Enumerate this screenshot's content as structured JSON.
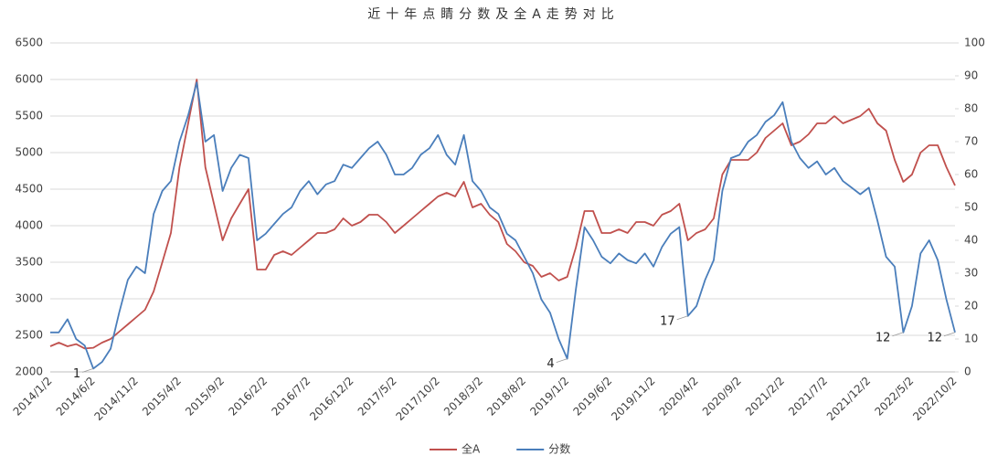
{
  "chart_data": {
    "type": "line",
    "title": "近十年点睛分数及全A走势对比",
    "categories": [
      "2014/1/2",
      null,
      null,
      null,
      null,
      "2014/6/2",
      null,
      null,
      null,
      null,
      "2014/11/2",
      null,
      null,
      null,
      null,
      "2015/4/2",
      null,
      null,
      null,
      null,
      "2015/9/2",
      null,
      null,
      null,
      null,
      "2016/2/2",
      null,
      null,
      null,
      null,
      "2016/7/2",
      null,
      null,
      null,
      null,
      "2016/12/2",
      null,
      null,
      null,
      null,
      "2017/5/2",
      null,
      null,
      null,
      null,
      "2017/10/2",
      null,
      null,
      null,
      null,
      "2018/3/2",
      null,
      null,
      null,
      null,
      "2018/8/2",
      null,
      null,
      null,
      null,
      "2019/1/2",
      null,
      null,
      null,
      null,
      "2019/6/2",
      null,
      null,
      null,
      null,
      "2019/11/2",
      null,
      null,
      null,
      null,
      "2020/4/2",
      null,
      null,
      null,
      null,
      "2020/9/2",
      null,
      null,
      null,
      null,
      "2021/2/2",
      null,
      null,
      null,
      null,
      "2021/7/2",
      null,
      null,
      null,
      null,
      "2021/12/2",
      null,
      null,
      null,
      null,
      "2022/5/2",
      null,
      null,
      null,
      null,
      "2022/10/2"
    ],
    "series": [
      {
        "name": "全A",
        "color": "#c0504d",
        "axis": "y",
        "values": [
          2350,
          2400,
          2350,
          2380,
          2320,
          2330,
          2400,
          2450,
          2550,
          2650,
          2750,
          2850,
          3100,
          3500,
          3900,
          4800,
          5400,
          6000,
          4800,
          4300,
          3800,
          4100,
          4300,
          4500,
          3400,
          3400,
          3600,
          3650,
          3600,
          3700,
          3800,
          3900,
          3900,
          3950,
          4100,
          4000,
          4050,
          4150,
          4150,
          4050,
          3900,
          4000,
          4100,
          4200,
          4300,
          4400,
          4450,
          4400,
          4600,
          4250,
          4300,
          4150,
          4050,
          3750,
          3650,
          3500,
          3450,
          3300,
          3350,
          3250,
          3300,
          3700,
          4200,
          4200,
          3900,
          3900,
          3950,
          3900,
          4050,
          4050,
          4000,
          4150,
          4200,
          4300,
          3800,
          3900,
          3950,
          4100,
          4700,
          4900,
          4900,
          4900,
          5000,
          5200,
          5300,
          5400,
          5100,
          5150,
          5250,
          5400,
          5400,
          5500,
          5400,
          5450,
          5500,
          5600,
          5400,
          5300,
          4900,
          4600,
          4700,
          5000,
          5100,
          5100,
          4800,
          4550
        ]
      },
      {
        "name": "分数",
        "color": "#4a7ebb",
        "axis": "y2",
        "values": [
          12,
          12,
          16,
          10,
          8,
          1,
          3,
          7,
          18,
          28,
          32,
          30,
          48,
          55,
          58,
          70,
          78,
          88,
          70,
          72,
          55,
          62,
          66,
          65,
          40,
          42,
          45,
          48,
          50,
          55,
          58,
          54,
          57,
          58,
          63,
          62,
          65,
          68,
          70,
          66,
          60,
          60,
          62,
          66,
          68,
          72,
          66,
          63,
          72,
          58,
          55,
          50,
          48,
          42,
          40,
          35,
          30,
          22,
          18,
          10,
          4,
          25,
          44,
          40,
          35,
          33,
          36,
          34,
          33,
          36,
          32,
          38,
          42,
          44,
          17,
          20,
          28,
          34,
          55,
          65,
          66,
          70,
          72,
          76,
          78,
          82,
          70,
          65,
          62,
          64,
          60,
          62,
          58,
          56,
          54,
          56,
          46,
          35,
          32,
          12,
          20,
          36,
          40,
          34,
          22,
          12
        ],
        "value_labels": [
          null,
          null,
          null,
          null,
          null,
          "1",
          null,
          null,
          null,
          null,
          null,
          null,
          null,
          null,
          null,
          null,
          null,
          null,
          null,
          null,
          null,
          null,
          null,
          null,
          null,
          null,
          null,
          null,
          null,
          null,
          null,
          null,
          null,
          null,
          null,
          null,
          null,
          null,
          null,
          null,
          null,
          null,
          null,
          null,
          null,
          null,
          null,
          null,
          null,
          null,
          null,
          null,
          null,
          null,
          null,
          null,
          null,
          null,
          null,
          null,
          "4",
          null,
          null,
          null,
          null,
          null,
          null,
          null,
          null,
          null,
          null,
          null,
          null,
          null,
          "17",
          null,
          null,
          null,
          null,
          null,
          null,
          null,
          null,
          null,
          null,
          null,
          null,
          null,
          null,
          null,
          null,
          null,
          null,
          null,
          null,
          null,
          null,
          null,
          null,
          "12",
          null,
          null,
          null,
          null,
          null,
          "12"
        ]
      }
    ],
    "ylim": [
      2000,
      6500
    ],
    "yticks": [
      2000,
      2500,
      3000,
      3500,
      4000,
      4500,
      5000,
      5500,
      6000,
      6500
    ],
    "y2lim": [
      0,
      100
    ],
    "y2ticks": [
      0,
      10,
      20,
      30,
      40,
      50,
      60,
      70,
      80,
      90,
      100
    ],
    "grid": true,
    "legend": "bottom"
  }
}
